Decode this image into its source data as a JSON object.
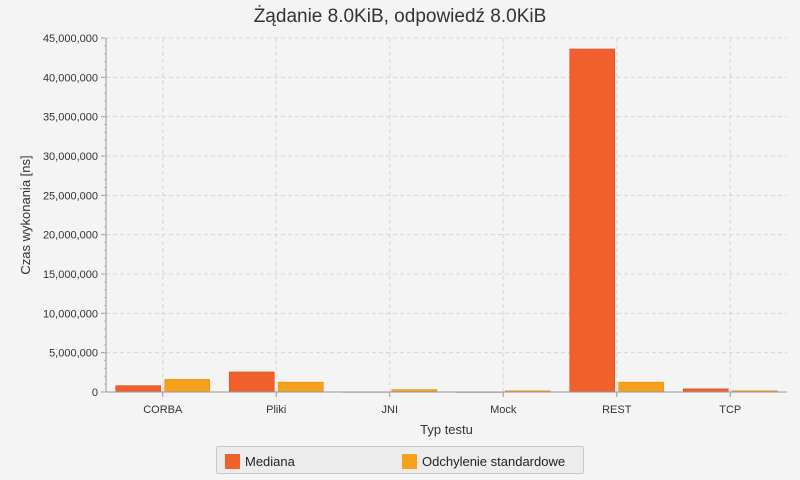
{
  "chart_data": {
    "type": "bar",
    "title": "Żądanie 8.0KiB, odpowiedź 8.0KiB",
    "xlabel": "Typ testu",
    "ylabel": "Czas wykonania [ns]",
    "categories": [
      "CORBA",
      "Pliki",
      "JNI",
      "Mock",
      "REST",
      "TCP"
    ],
    "ylim": [
      0,
      45000000
    ],
    "yticks": [
      "0",
      "5,000,000",
      "10,000,000",
      "15,000,000",
      "20,000,000",
      "25,000,000",
      "30,000,000",
      "35,000,000",
      "40,000,000",
      "45,000,000"
    ],
    "grid": true,
    "legend_position": "bottom",
    "series": [
      {
        "name": "Mediana",
        "color": "#f0602c",
        "values": [
          800000,
          2550000,
          20000,
          15000,
          43600000,
          400000
        ]
      },
      {
        "name": "Odchylenie standardowe",
        "color": "#f5a11c",
        "values": [
          1600000,
          1250000,
          300000,
          150000,
          1250000,
          150000
        ]
      }
    ]
  }
}
